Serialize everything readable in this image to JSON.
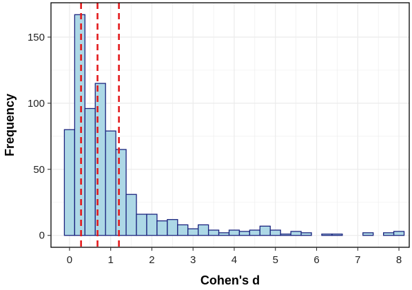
{
  "chart_data": {
    "type": "bar",
    "subtype": "histogram",
    "xlabel": "Cohen's d",
    "ylabel": "Frequency",
    "xlim": [
      -0.45,
      8.25
    ],
    "ylim": [
      -9,
      176
    ],
    "x_ticks": [
      0,
      1,
      2,
      3,
      4,
      5,
      6,
      7,
      8
    ],
    "y_ticks": [
      0,
      50,
      100,
      150
    ],
    "grid": true,
    "bin_start": -0.125,
    "bin_width": 0.25,
    "values": [
      80,
      167,
      96,
      115,
      79,
      65,
      31,
      16,
      16,
      11,
      12,
      8,
      5,
      8,
      4,
      2,
      4,
      3,
      4,
      7,
      4,
      1,
      3,
      2,
      0,
      1,
      1,
      0,
      0,
      2,
      0,
      2,
      3
    ],
    "reference_lines": [
      0.28,
      0.68,
      1.2
    ],
    "colors": {
      "bar_fill": "#add8e6",
      "bar_stroke": "#1a237e",
      "reference_line": "#e31a1c",
      "grid": "#ebebeb",
      "panel_border": "#000000"
    }
  }
}
